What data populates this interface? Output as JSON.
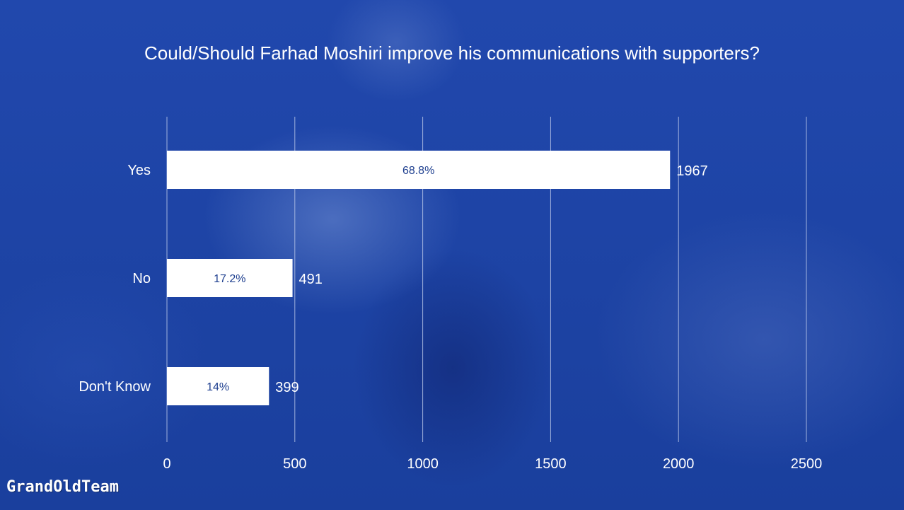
{
  "logo": "GrandOldTeam",
  "chart_data": {
    "type": "bar",
    "orientation": "horizontal",
    "title": "Could/Should Farhad Moshiri improve his communications with supporters?",
    "categories": [
      "Yes",
      "No",
      "Don't Know"
    ],
    "values": [
      1967,
      491,
      399
    ],
    "percent_labels": [
      "68.8%",
      "17.2%",
      "14%"
    ],
    "xlim": [
      0,
      2500
    ],
    "ticks": [
      0,
      500,
      1000,
      1500,
      2000,
      2500
    ],
    "xlabel": "",
    "ylabel": "",
    "grid": true,
    "legend": "none",
    "colors": {
      "bar": "#ffffff",
      "percent_text": "#1e3f8f",
      "grid": "#b8c6e8",
      "text": "#ffffff"
    }
  }
}
